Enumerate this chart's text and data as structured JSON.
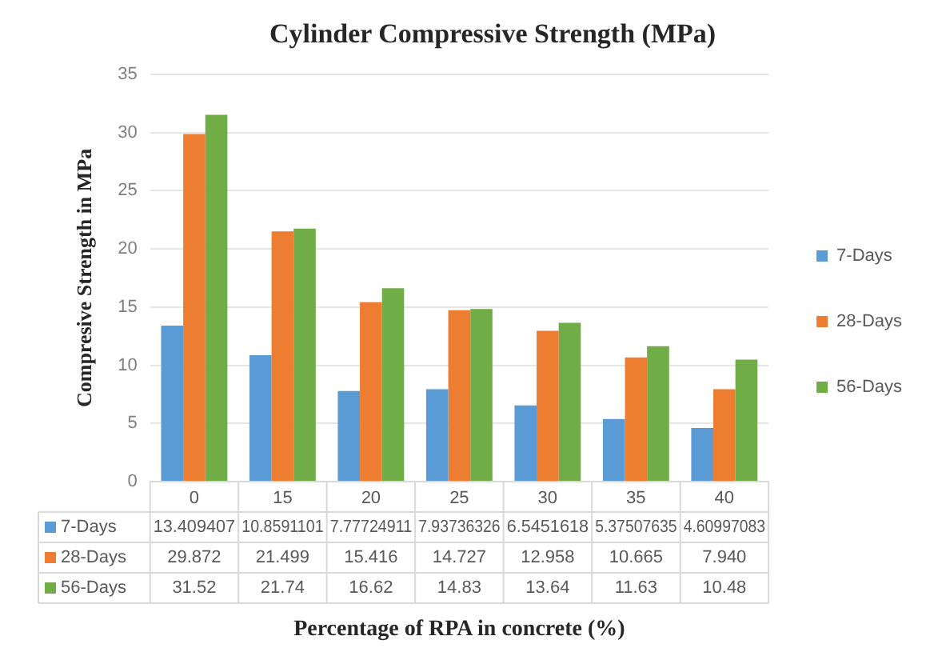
{
  "chart_data": {
    "type": "bar",
    "title": "Cylinder Compressive Strength (MPa)",
    "xlabel": "Percentage of RPA in concrete (%)",
    "ylabel": "Compresive Strength in MPa",
    "categories": [
      "0",
      "15",
      "20",
      "25",
      "30",
      "35",
      "40"
    ],
    "series": [
      {
        "name": "7-Days",
        "color": "#5b9bd5",
        "values": [
          13.409407,
          10.8591101,
          7.77724911,
          7.93736326,
          6.5451618,
          5.37507635,
          4.60997083
        ],
        "value_labels": [
          "13.409407",
          "10.8591101",
          "7.77724911",
          "7.93736326",
          "6.5451618",
          "5.37507635",
          "4.60997083"
        ]
      },
      {
        "name": "28-Days",
        "color": "#ed7d31",
        "values": [
          29.872,
          21.499,
          15.416,
          14.727,
          12.958,
          10.665,
          7.94
        ],
        "value_labels": [
          "29.872",
          "21.499",
          "15.416",
          "14.727",
          "12.958",
          "10.665",
          "7.940"
        ]
      },
      {
        "name": "56-Days",
        "color": "#70ad47",
        "values": [
          31.52,
          21.74,
          16.62,
          14.83,
          13.64,
          11.63,
          10.48
        ],
        "value_labels": [
          "31.52",
          "21.74",
          "16.62",
          "14.83",
          "13.64",
          "11.63",
          "10.48"
        ]
      }
    ],
    "ylim": [
      0,
      35
    ],
    "yticks": [
      0,
      5,
      10,
      15,
      20,
      25,
      30,
      35
    ],
    "grid": "y",
    "legend": "right"
  }
}
